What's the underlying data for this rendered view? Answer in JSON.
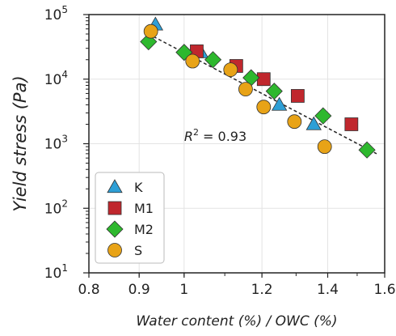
{
  "chart_data": {
    "type": "scatter",
    "title": "",
    "xlabel": "Water content (%) / OWC (%)",
    "ylabel": "Yield stress (Pa)",
    "xlim": [
      0.8,
      1.6
    ],
    "ylim": [
      10,
      100000
    ],
    "yscale": "log",
    "grid": true,
    "legend_position": "bottom-left",
    "x_ticks": [
      "0.8",
      "0.9",
      "1",
      "1.2",
      "1.4",
      "1.6"
    ],
    "y_ticks": [
      {
        "base": "10",
        "exp": "1"
      },
      {
        "base": "10",
        "exp": "2"
      },
      {
        "base": "10",
        "exp": "3"
      },
      {
        "base": "10",
        "exp": "4"
      },
      {
        "base": "10",
        "exp": "5"
      }
    ],
    "series": [
      {
        "name": "K",
        "marker": "triangle",
        "color": "#2e9fd6",
        "points": [
          [
            0.935,
            70000
          ],
          [
            1.04,
            26000
          ],
          [
            1.25,
            4000
          ],
          [
            1.355,
            2000
          ]
        ]
      },
      {
        "name": "M1",
        "marker": "square",
        "color": "#c0272d",
        "points": [
          [
            1.03,
            27000
          ],
          [
            1.13,
            16000
          ],
          [
            1.205,
            10000
          ],
          [
            1.305,
            5500
          ],
          [
            1.48,
            2000
          ]
        ]
      },
      {
        "name": "M2",
        "marker": "diamond",
        "color": "#2eb82e",
        "points": [
          [
            0.92,
            38000
          ],
          [
            1.0,
            26000
          ],
          [
            1.07,
            20000
          ],
          [
            1.17,
            10500
          ],
          [
            1.235,
            6500
          ],
          [
            1.385,
            2700
          ],
          [
            1.535,
            800
          ]
        ]
      },
      {
        "name": "S",
        "marker": "circle",
        "color": "#e8a317",
        "points": [
          [
            0.925,
            55000
          ],
          [
            1.02,
            19000
          ],
          [
            1.115,
            14000
          ],
          [
            1.155,
            7000
          ],
          [
            1.205,
            3700
          ],
          [
            1.295,
            2200
          ],
          [
            1.39,
            900
          ]
        ]
      }
    ],
    "fit_line": {
      "style": "dashed",
      "color": "#222222",
      "from": [
        0.92,
        50000
      ],
      "to": [
        1.57,
        700
      ]
    },
    "annotation": {
      "symbol": "R",
      "exp": "2",
      "text": " = 0.93",
      "x": 1.0,
      "y": 1100
    }
  }
}
